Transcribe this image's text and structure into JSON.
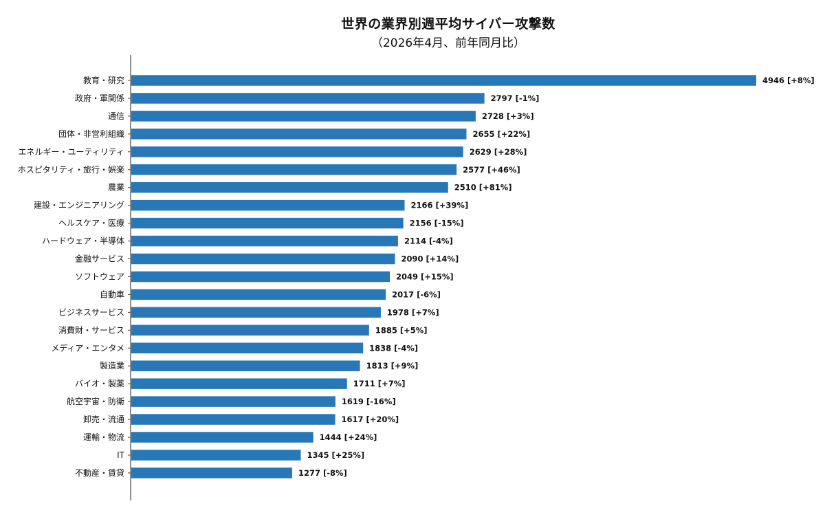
{
  "title": "世界の業界別週平均サイバー攻撃数",
  "subtitle": "（2026年4月、前年同月比）",
  "chart_data": {
    "type": "bar",
    "orientation": "horizontal",
    "title": "世界の業界別週平均サイバー攻撃数",
    "subtitle": "（2026年4月、前年同月比）",
    "xlabel": "",
    "ylabel": "",
    "xlim": [
      0,
      4946
    ],
    "grid": false,
    "legend": "none",
    "bar_color": "#2878b8",
    "categories": [
      "教育・研究",
      "政府・軍関係",
      "通信",
      "団体・非営利組織",
      "エネルギー・ユーティリティ",
      "ホスピタリティ・旅行・娯楽",
      "農業",
      "建設・エンジニアリング",
      "ヘルスケア・医療",
      "ハードウェア・半導体",
      "金融サービス",
      "ソフトウェア",
      "自動車",
      "ビジネスサービス",
      "消費財・サービス",
      "メディア・エンタメ",
      "製造業",
      "バイオ・製薬",
      "航空宇宙・防衛",
      "卸売・流通",
      "運輸・物流",
      "IT",
      "不動産・賃貸"
    ],
    "values": [
      4946,
      2797,
      2728,
      2655,
      2629,
      2577,
      2510,
      2166,
      2156,
      2114,
      2090,
      2049,
      2017,
      1978,
      1885,
      1838,
      1813,
      1711,
      1619,
      1617,
      1444,
      1345,
      1277
    ],
    "data_labels": [
      "4946 [+8%]",
      "2797 [-1%]",
      "2728 [+3%]",
      "2655 [+22%]",
      "2629 [+28%]",
      "2577 [+46%]",
      "2510 [+81%]",
      "2166 [+39%]",
      "2156 [-15%]",
      "2114 [-4%]",
      "2090 [+14%]",
      "2049 [+15%]",
      "2017 [-6%]",
      "1978 [+7%]",
      "1885 [+5%]",
      "1838 [-4%]",
      "1813 [+9%]",
      "1711 [+7%]",
      "1619 [-16%]",
      "1617 [+20%]",
      "1444 [+24%]",
      "1345 [+25%]",
      "1277 [-8%]"
    ]
  }
}
